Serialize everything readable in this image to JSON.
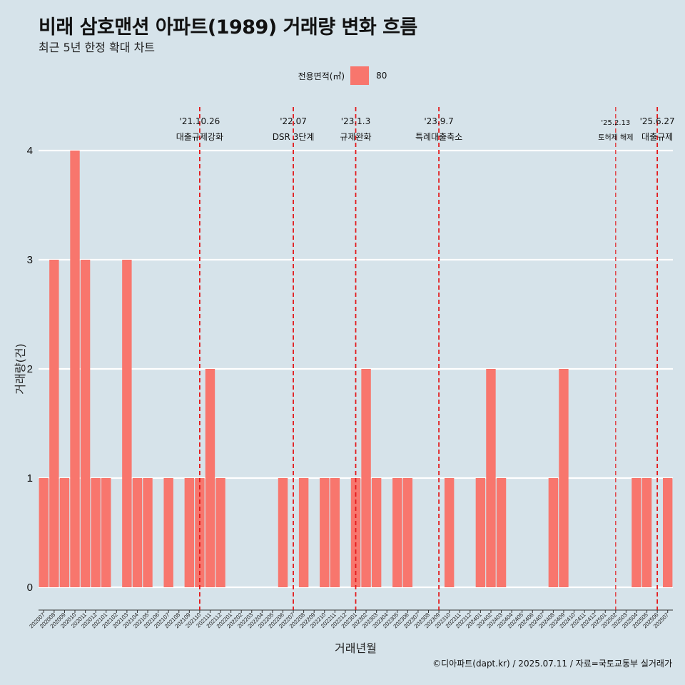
{
  "title": "비래 삼호맨션 아파트(1989) 거래량 변화 흐름",
  "subtitle": "최근 5년 한정 확대 차트",
  "legend": {
    "title": "전용면적(㎡)",
    "entries": [
      "80"
    ]
  },
  "caption": "©디아파트(dapt.kr) / 2025.07.11 / 자료=국토교통부 실거래가",
  "colors": {
    "bar": "#f8766d",
    "background": "#d6e3ea",
    "event_line": "#e31a1c",
    "grid": "#ffffff"
  },
  "chart_data": {
    "type": "bar",
    "title": "비래 삼호맨션 아파트(1989) 거래량 변화 흐름",
    "subtitle": "최근 5년 한정 확대 차트",
    "xlabel": "거래년월",
    "ylabel": "거래량(건)",
    "ylim": [
      0,
      4
    ],
    "yticks": [
      0,
      1,
      2,
      3,
      4
    ],
    "grid": "horizontal major lines",
    "legend_placement": "top",
    "categories": [
      "202007",
      "202008",
      "202009",
      "202010",
      "202011",
      "202012",
      "202101",
      "202102",
      "202103",
      "202104",
      "202105",
      "202106",
      "202107",
      "202108",
      "202109",
      "202110",
      "202111",
      "202112",
      "202201",
      "202202",
      "202203",
      "202204",
      "202205",
      "202206",
      "202207",
      "202208",
      "202209",
      "202210",
      "202211",
      "202212",
      "202301",
      "202302",
      "202303",
      "202304",
      "202305",
      "202306",
      "202307",
      "202308",
      "202309",
      "202310",
      "202311",
      "202312",
      "202401",
      "202402",
      "202403",
      "202404",
      "202405",
      "202406",
      "202407",
      "202408",
      "202409",
      "202410",
      "202411",
      "202412",
      "202501",
      "202502",
      "202503",
      "202504",
      "202505",
      "202506",
      "202507"
    ],
    "series": [
      {
        "name": "80",
        "values": [
          1,
          3,
          1,
          4,
          3,
          1,
          1,
          0,
          3,
          1,
          1,
          0,
          1,
          0,
          1,
          1,
          2,
          1,
          0,
          0,
          0,
          0,
          0,
          1,
          0,
          1,
          0,
          1,
          1,
          0,
          1,
          2,
          1,
          0,
          1,
          1,
          0,
          0,
          0,
          1,
          0,
          0,
          1,
          2,
          1,
          0,
          0,
          0,
          0,
          1,
          2,
          0,
          0,
          0,
          0,
          0,
          0,
          1,
          1,
          0,
          1
        ]
      }
    ],
    "events": [
      {
        "date": "'21.10.26",
        "label": "대출규제강화",
        "x": "202110",
        "style": "dashed"
      },
      {
        "date": "'22.07",
        "label": "DSR 3단계",
        "x": "202207",
        "style": "dashed"
      },
      {
        "date": "'23.1.3",
        "label": "규제완화",
        "x": "202301",
        "style": "dashed"
      },
      {
        "date": "'23.9.7",
        "label": "특례대출축소",
        "x": "202309",
        "style": "dashed"
      },
      {
        "date": "'25.2.13",
        "label": "토허제 해제",
        "x": "202502",
        "style": "thin"
      },
      {
        "date": "'25.6.27",
        "label": "대출규제",
        "x": "202506",
        "style": "dashed"
      }
    ]
  }
}
